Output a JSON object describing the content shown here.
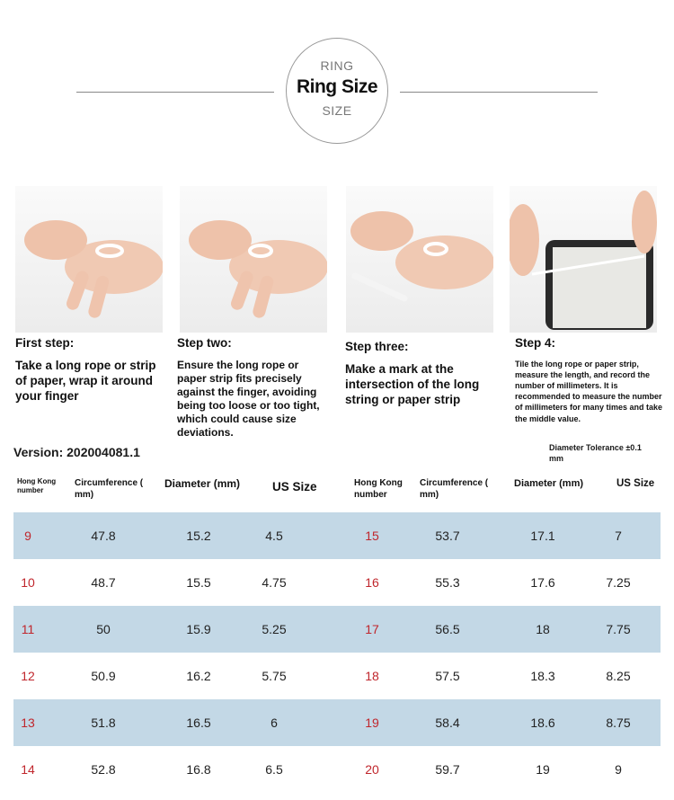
{
  "header": {
    "top": "RING",
    "title": "Ring Size",
    "bottom": "SIZE"
  },
  "steps": [
    {
      "title": "First step:",
      "text": "Take a long rope or strip of paper, wrap it around your finger"
    },
    {
      "title": "Step two:",
      "text": "Ensure the long rope or paper strip fits precisely against the finger, avoiding being too loose or too tight, which could cause size deviations."
    },
    {
      "title": "Step three:",
      "text": "Make a mark at the intersection of the long string or paper strip"
    },
    {
      "title": "Step 4:",
      "text": "Tile the long rope or paper strip, measure the length, and record the number of millimeters. It is recommended to measure the number of millimeters for many times and take the middle value."
    }
  ],
  "version": "Version: 202004081.1",
  "tolerance": "Diameter Tolerance ±0.1 mm",
  "table": {
    "headers": [
      "Hong Kong number",
      "Circumference ( mm)",
      "Diameter (mm)",
      "US Size"
    ],
    "left": [
      [
        "9",
        "47.8",
        "15.2",
        "4.5"
      ],
      [
        "10",
        "48.7",
        "15.5",
        "4.75"
      ],
      [
        "11",
        "50",
        "15.9",
        "5.25"
      ],
      [
        "12",
        "50.9",
        "16.2",
        "5.75"
      ],
      [
        "13",
        "51.8",
        "16.5",
        "6"
      ],
      [
        "14",
        "52.8",
        "16.8",
        "6.5"
      ]
    ],
    "right": [
      [
        "15",
        "53.7",
        "17.1",
        "7"
      ],
      [
        "16",
        "55.3",
        "17.6",
        "7.25"
      ],
      [
        "17",
        "56.5",
        "18",
        "7.75"
      ],
      [
        "18",
        "57.5",
        "18.3",
        "8.25"
      ],
      [
        "19",
        "58.4",
        "18.6",
        "8.75"
      ],
      [
        "20",
        "59.7",
        "19",
        "9"
      ]
    ]
  },
  "colors": {
    "row_band": "#c3d8e6",
    "size_number": "#c0262c"
  }
}
